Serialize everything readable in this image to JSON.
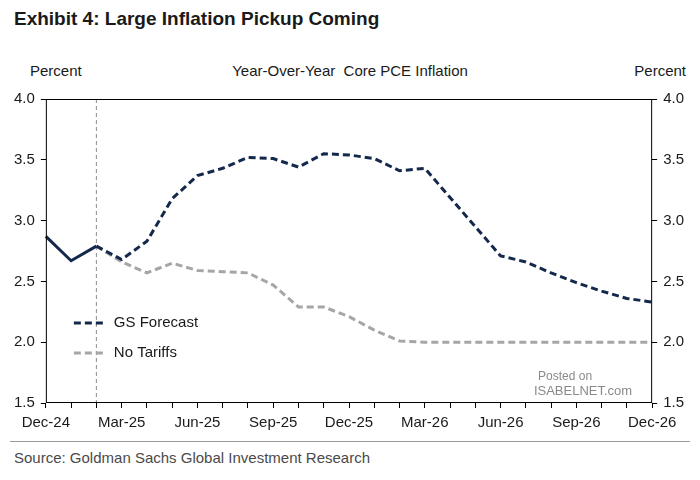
{
  "chart_data": {
    "type": "line",
    "title": "Exhibit 4: Large Inflation Pickup Coming",
    "subtitle": "Year-Over-Year  Core PCE Inflation",
    "y_label": "Percent",
    "y2_label": "Percent",
    "source": "Source: Goldman Sachs Global Investment Research",
    "annotations": [
      "Posted on",
      "ISABELNET.com"
    ],
    "categories": [
      "Dec-24",
      null,
      null,
      "Mar-25",
      null,
      null,
      "Jun-25",
      null,
      null,
      "Sep-25",
      null,
      null,
      "Dec-25",
      null,
      null,
      "Mar-26",
      null,
      null,
      "Jun-26",
      null,
      null,
      "Sep-26",
      null,
      null,
      "Dec-26"
    ],
    "series": [
      {
        "color": "#14284b",
        "line_style": "solid",
        "marker": "none",
        "values": [
          2.87,
          2.67,
          2.79,
          null,
          null,
          null,
          null,
          null,
          null,
          null,
          null,
          null,
          null,
          null,
          null,
          null,
          null,
          null,
          null,
          null,
          null,
          null,
          null,
          null,
          null
        ]
      },
      {
        "name": "GS Forecast",
        "color": "#14284b",
        "line_style": "dashed",
        "marker": "none",
        "values": [
          null,
          null,
          2.79,
          2.68,
          2.83,
          3.18,
          3.37,
          3.43,
          3.52,
          3.51,
          3.44,
          3.55,
          3.54,
          3.51,
          3.41,
          3.43,
          3.19,
          2.95,
          2.71,
          2.66,
          2.57,
          2.49,
          2.42,
          2.36,
          2.33
        ]
      },
      {
        "name": "No Tariffs",
        "color": "#a6a6a6",
        "line_style": "dashed",
        "marker": "none",
        "values": [
          null,
          null,
          2.79,
          2.66,
          2.57,
          2.65,
          2.59,
          2.58,
          2.57,
          2.47,
          2.29,
          2.29,
          2.21,
          2.1,
          2.01,
          2.0,
          2.0,
          2.0,
          2.0,
          2.0,
          2.0,
          2.0,
          2.0,
          2.0,
          2.0
        ]
      }
    ],
    "ylim": [
      1.5,
      4.0
    ],
    "yticks": [
      1.5,
      {
        "value": 2,
        "label": "2.0"
      },
      2.5,
      {
        "value": 3,
        "label": "3.0"
      },
      3.5,
      {
        "value": 4,
        "label": "4.0"
      }
    ],
    "y2lim": [
      1.5,
      4.0
    ],
    "y2ticks": [
      1.5,
      {
        "value": 2,
        "label": "2.0"
      },
      2.5,
      {
        "value": 3,
        "label": "3.0"
      },
      3.5,
      {
        "value": 4,
        "label": "4.0"
      }
    ],
    "grid": false,
    "legend": "lower left"
  }
}
